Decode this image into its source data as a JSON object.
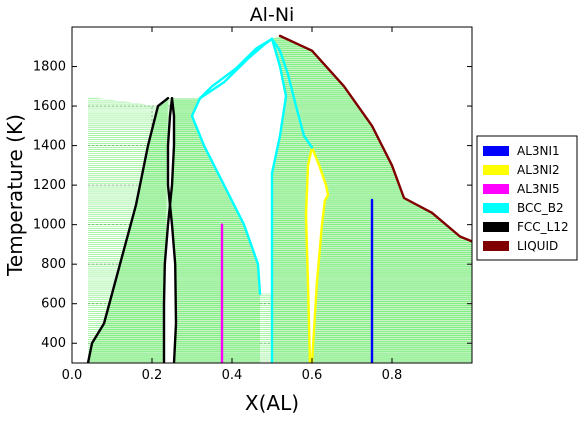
{
  "chart_data": {
    "type": "phase-diagram",
    "title": "Al-Ni",
    "xlabel": "X(AL)",
    "ylabel": "Temperature (K)",
    "xlim": [
      0.0,
      1.0
    ],
    "ylim": [
      300,
      2000
    ],
    "xticks": [
      0.0,
      0.2,
      0.4,
      0.6,
      0.8
    ],
    "yticks": [
      400,
      600,
      800,
      1000,
      1200,
      1400,
      1600,
      1800
    ],
    "grid": true,
    "legend_position": "right",
    "tie_line_color": "#00e000",
    "series": [
      {
        "name": "AL3NI1",
        "color": "#0000ff",
        "lines": [
          [
            [
              0.75,
              300
            ],
            [
              0.75,
              1125
            ]
          ]
        ]
      },
      {
        "name": "AL3NI2",
        "color": "#ffff00",
        "lines": [
          [
            [
              0.595,
              300
            ],
            [
              0.59,
              700
            ],
            [
              0.585,
              1050
            ],
            [
              0.59,
              1300
            ],
            [
              0.6,
              1390
            ]
          ],
          [
            [
              0.6,
              300
            ],
            [
              0.612,
              700
            ],
            [
              0.625,
              1000
            ],
            [
              0.632,
              1120
            ],
            [
              0.64,
              1150
            ],
            [
              0.635,
              1200
            ],
            [
              0.618,
              1300
            ],
            [
              0.6,
              1390
            ]
          ]
        ]
      },
      {
        "name": "AL3NI5",
        "color": "#ff00ff",
        "lines": [
          [
            [
              0.375,
              300
            ],
            [
              0.375,
              1000
            ]
          ]
        ]
      },
      {
        "name": "BCC_B2",
        "color": "#00ffff",
        "lines": [
          [
            [
              0.5,
              300
            ],
            [
              0.5,
              1200
            ],
            [
              0.5,
              1260
            ]
          ],
          [
            [
              0.47,
              650
            ],
            [
              0.465,
              800
            ],
            [
              0.43,
              1000
            ],
            [
              0.38,
              1200
            ],
            [
              0.33,
              1400
            ],
            [
              0.3,
              1550
            ],
            [
              0.32,
              1640
            ]
          ],
          [
            [
              0.32,
              1640
            ],
            [
              0.38,
              1720
            ],
            [
              0.44,
              1840
            ],
            [
              0.48,
              1910
            ],
            [
              0.5,
              1940
            ]
          ],
          [
            [
              0.5,
              1940
            ],
            [
              0.46,
              1890
            ],
            [
              0.41,
              1790
            ],
            [
              0.35,
              1700
            ],
            [
              0.32,
              1640
            ]
          ],
          [
            [
              0.5,
              1940
            ],
            [
              0.52,
              1880
            ],
            [
              0.54,
              1760
            ],
            [
              0.56,
              1600
            ],
            [
              0.58,
              1450
            ],
            [
              0.6,
              1390
            ]
          ],
          [
            [
              0.5,
              1260
            ],
            [
              0.52,
              1450
            ],
            [
              0.535,
              1650
            ],
            [
              0.52,
              1800
            ],
            [
              0.5,
              1940
            ]
          ]
        ]
      },
      {
        "name": "FCC_L12",
        "color": "#000000",
        "lines": [
          [
            [
              0.04,
              300
            ],
            [
              0.05,
              400
            ],
            [
              0.08,
              500
            ],
            [
              0.12,
              800
            ],
            [
              0.16,
              1100
            ],
            [
              0.19,
              1400
            ],
            [
              0.215,
              1600
            ],
            [
              0.24,
              1640
            ]
          ],
          [
            [
              0.255,
              300
            ],
            [
              0.26,
              500
            ],
            [
              0.258,
              800
            ],
            [
              0.25,
              1000
            ],
            [
              0.24,
              1200
            ],
            [
              0.24,
              1400
            ],
            [
              0.245,
              1550
            ],
            [
              0.25,
              1640
            ]
          ],
          [
            [
              0.23,
              300
            ],
            [
              0.23,
              600
            ],
            [
              0.232,
              800
            ],
            [
              0.24,
              1000
            ],
            [
              0.25,
              1200
            ],
            [
              0.255,
              1400
            ],
            [
              0.255,
              1550
            ],
            [
              0.25,
              1640
            ]
          ]
        ]
      },
      {
        "name": "LIQUID",
        "color": "#800000",
        "lines": [
          [
            [
              0.52,
              1955
            ],
            [
              0.6,
              1880
            ],
            [
              0.68,
              1700
            ],
            [
              0.75,
              1500
            ],
            [
              0.8,
              1300
            ],
            [
              0.83,
              1135
            ],
            [
              0.9,
              1060
            ],
            [
              0.97,
              940
            ],
            [
              1.0,
              915
            ]
          ]
        ]
      }
    ]
  }
}
